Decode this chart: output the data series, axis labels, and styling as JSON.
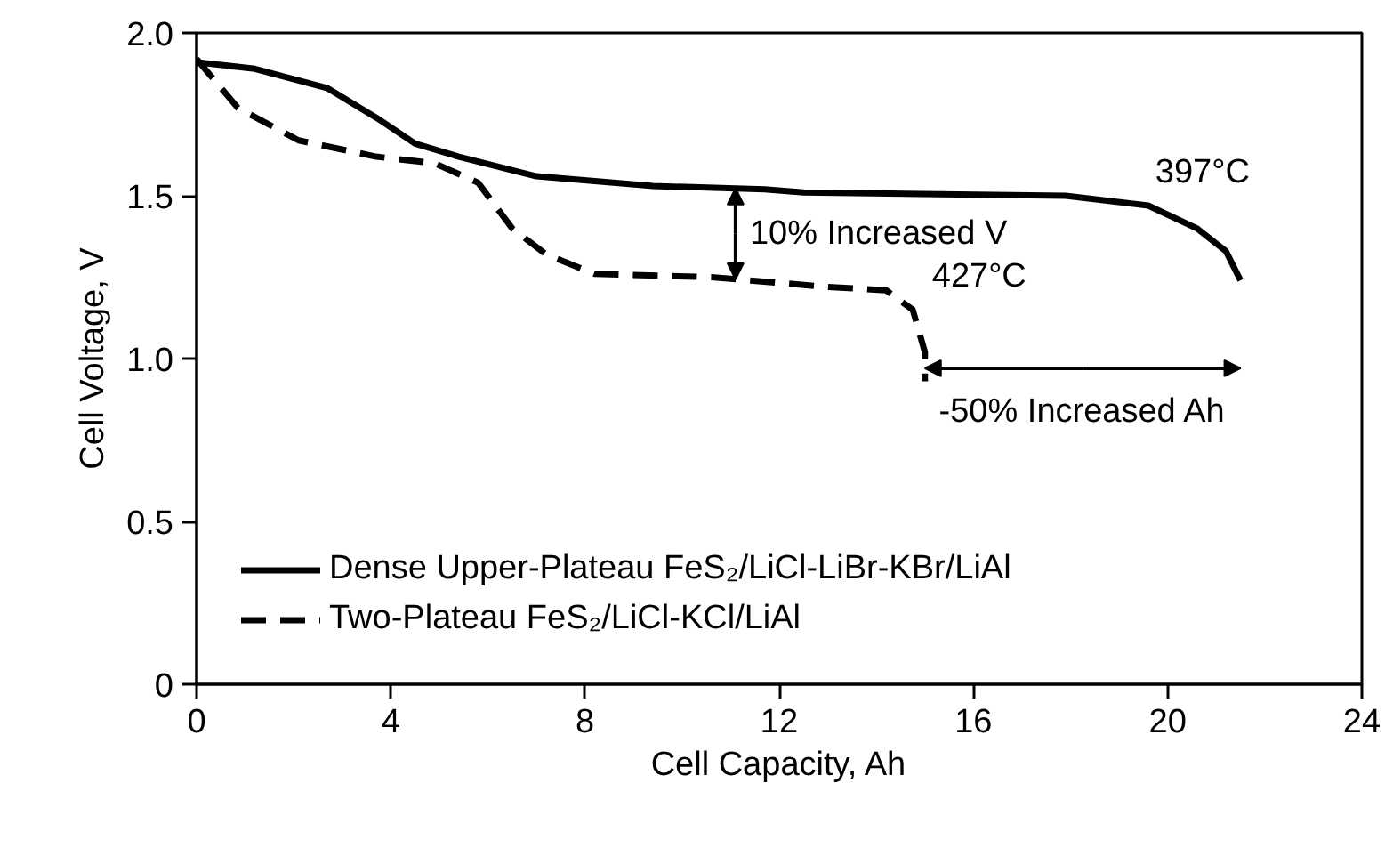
{
  "chart_data": {
    "type": "line",
    "xlabel": "Cell Capacity, Ah",
    "ylabel": "Cell Voltage, V",
    "xlim": [
      0,
      24
    ],
    "xticks": [
      0,
      4,
      8,
      12,
      16,
      20,
      24
    ],
    "ylim": [
      0,
      2.0
    ],
    "yticks": [
      {
        "value": 0,
        "label": "0"
      },
      0.5,
      {
        "value": 1.0,
        "label": "1.0"
      },
      1.5,
      {
        "value": 2.0,
        "label": "2.0"
      }
    ],
    "grid": false,
    "legend": "bottom left",
    "marker": "none",
    "series": [
      {
        "name": "Dense Upper-Plateau FeS₂/LiCl-LiBr-KBr/LiAl",
        "color": "#000000",
        "line_style": "solid",
        "x": [
          0,
          1.2,
          2.7,
          3.7,
          4.5,
          5.4,
          7.0,
          9.4,
          11.7,
          12.5,
          17.9,
          19.6,
          20.6,
          21.2,
          21.5
        ],
        "values": [
          1.91,
          1.89,
          1.83,
          1.74,
          1.66,
          1.62,
          1.56,
          1.53,
          1.52,
          1.51,
          1.5,
          1.47,
          1.4,
          1.33,
          1.24
        ]
      },
      {
        "name": "Two-Plateau FeS₂/LiCl-KCl/LiAl",
        "color": "#000000",
        "line_style": "dashed",
        "x": [
          0,
          0.85,
          2.1,
          3.7,
          4.9,
          5.8,
          6.5,
          7.2,
          8.2,
          10.6,
          13.0,
          14.2,
          14.75,
          15.0,
          15.0
        ],
        "values": [
          1.92,
          1.77,
          1.67,
          1.62,
          1.6,
          1.54,
          1.4,
          1.32,
          1.26,
          1.25,
          1.22,
          1.21,
          1.15,
          1.02,
          0.93
        ]
      }
    ],
    "annotations": [
      "10% Increased V",
      "-50% Increased Ah",
      {
        "text": "397°C",
        "x": 19.6,
        "y": 1.47
      },
      {
        "text": "427°C",
        "x": 15.0,
        "y": 1.15
      }
    ]
  }
}
